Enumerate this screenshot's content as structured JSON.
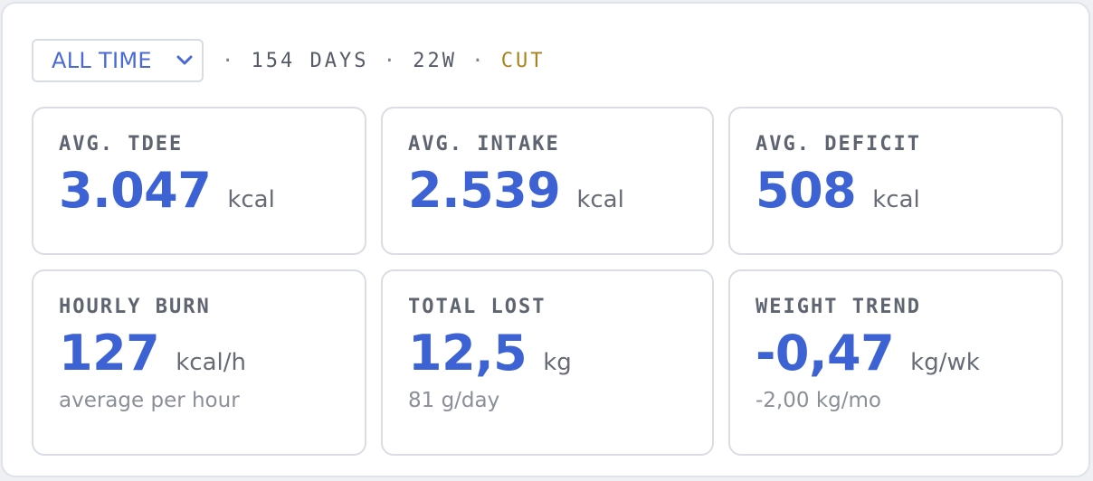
{
  "toolbar": {
    "range_select": {
      "selected": "ALL TIME"
    },
    "days": "154 DAYS",
    "weeks": "22W",
    "mode": "CUT",
    "separator": "·"
  },
  "cards": [
    {
      "label": "AVG. TDEE",
      "value": "3.047",
      "unit": "kcal",
      "sub": ""
    },
    {
      "label": "AVG. INTAKE",
      "value": "2.539",
      "unit": "kcal",
      "sub": ""
    },
    {
      "label": "AVG. DEFICIT",
      "value": "508",
      "unit": "kcal",
      "sub": ""
    },
    {
      "label": "HOURLY BURN",
      "value": "127",
      "unit": "kcal/h",
      "sub": "average per hour"
    },
    {
      "label": "TOTAL LOST",
      "value": "12,5",
      "unit": "kg",
      "sub": "81 g/day"
    },
    {
      "label": "WEIGHT TREND",
      "value": "-0,47",
      "unit": "kg/wk",
      "sub": "-2,00 kg/mo"
    }
  ],
  "colors": {
    "accent": "#3c62d3",
    "mode": "#a9831c",
    "label": "#5f6570"
  }
}
